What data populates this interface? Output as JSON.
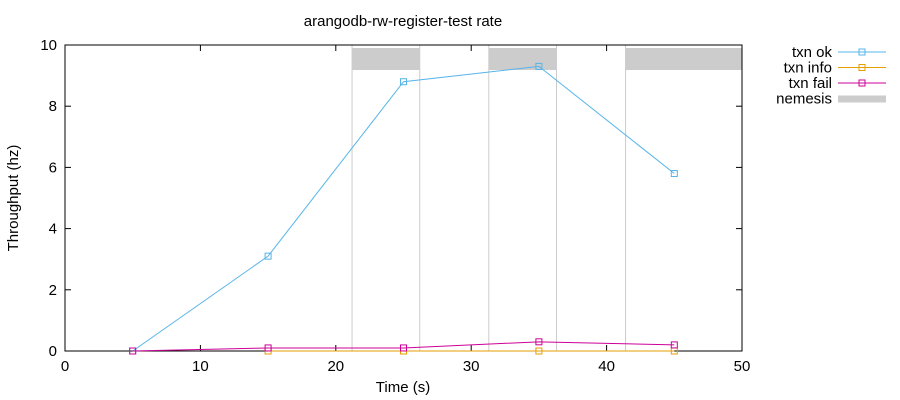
{
  "chart_data": {
    "type": "line",
    "title": "arangodb-rw-register-test rate",
    "xlabel": "Time (s)",
    "ylabel": "Throughput (hz)",
    "xlim": [
      0,
      50
    ],
    "ylim": [
      0,
      10
    ],
    "xticks": [
      0,
      10,
      20,
      30,
      40,
      50
    ],
    "yticks": [
      0,
      2,
      4,
      6,
      8,
      10
    ],
    "grid": false,
    "legend_position": "outside-top-right",
    "series": [
      {
        "name": "txn ok",
        "color": "#56b4e9",
        "marker": "open-square",
        "x": [
          5,
          15,
          25,
          35,
          45
        ],
        "y": [
          0.0,
          3.1,
          8.8,
          9.3,
          5.8
        ]
      },
      {
        "name": "txn info",
        "color": "#e69f00",
        "marker": "open-square",
        "x": [
          15,
          25,
          35,
          45
        ],
        "y": [
          0.0,
          0.0,
          0.0,
          0.0
        ]
      },
      {
        "name": "txn fail",
        "color": "#cc0099",
        "marker": "open-square",
        "x": [
          5,
          15,
          25,
          35,
          45
        ],
        "y": [
          0.0,
          0.1,
          0.1,
          0.3,
          0.2
        ]
      }
    ],
    "nemesis": {
      "name": "nemesis",
      "color": "#cccccc",
      "intervals": [
        [
          21.2,
          26.2
        ],
        [
          31.3,
          36.3
        ],
        [
          41.4,
          50.0
        ]
      ]
    }
  }
}
